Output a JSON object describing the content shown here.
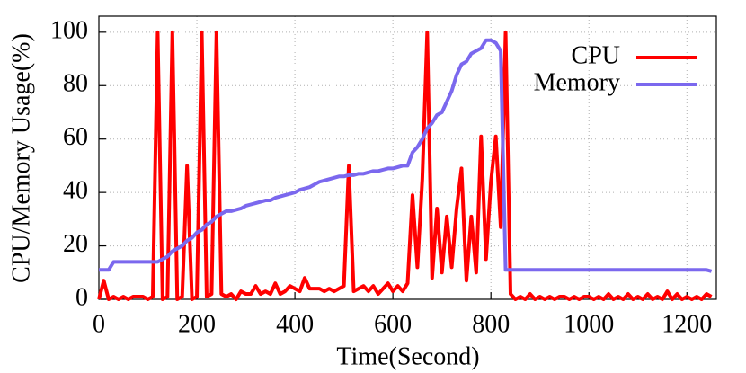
{
  "chart_data": {
    "type": "line",
    "xlabel": "Time(Second)",
    "ylabel": "CPU/Memory Usage(%)",
    "x": [
      0,
      10,
      20,
      30,
      40,
      50,
      60,
      70,
      80,
      90,
      100,
      110,
      120,
      130,
      140,
      150,
      160,
      170,
      180,
      190,
      200,
      210,
      220,
      230,
      240,
      250,
      260,
      270,
      280,
      290,
      300,
      310,
      320,
      330,
      340,
      350,
      360,
      370,
      380,
      390,
      400,
      410,
      420,
      430,
      440,
      450,
      460,
      470,
      480,
      490,
      500,
      510,
      520,
      530,
      540,
      550,
      560,
      570,
      580,
      590,
      600,
      610,
      620,
      630,
      640,
      650,
      660,
      670,
      680,
      690,
      700,
      710,
      720,
      730,
      740,
      750,
      760,
      770,
      780,
      790,
      800,
      810,
      820,
      830,
      840,
      850,
      860,
      870,
      880,
      890,
      900,
      910,
      920,
      930,
      940,
      950,
      960,
      970,
      980,
      990,
      1000,
      1010,
      1020,
      1030,
      1040,
      1050,
      1060,
      1070,
      1080,
      1090,
      1100,
      1110,
      1120,
      1130,
      1140,
      1150,
      1160,
      1170,
      1180,
      1190,
      1200,
      1210,
      1220,
      1230,
      1240,
      1250
    ],
    "series": [
      {
        "name": "CPU",
        "color": "#ff0000",
        "values": [
          0,
          7,
          0,
          1,
          0,
          1,
          0,
          1,
          1,
          1,
          0,
          1,
          100,
          0,
          1,
          100,
          0,
          1,
          50,
          0,
          1,
          100,
          1,
          2,
          100,
          2,
          1,
          2,
          0,
          3,
          2,
          2,
          5,
          2,
          3,
          2,
          6,
          2,
          3,
          5,
          4,
          3,
          8,
          4,
          4,
          4,
          3,
          4,
          3,
          4,
          5,
          50,
          3,
          4,
          5,
          3,
          5,
          2,
          4,
          6,
          3,
          5,
          3,
          6,
          39,
          12,
          45,
          100,
          8,
          34,
          10,
          31,
          12,
          34,
          49,
          7,
          31,
          10,
          61,
          15,
          44,
          61,
          27,
          100,
          2,
          0,
          1,
          0,
          2,
          0,
          1,
          0,
          1,
          0,
          1,
          1,
          0,
          1,
          0,
          1,
          1,
          0,
          1,
          0,
          2,
          0,
          1,
          0,
          2,
          0,
          1,
          0,
          2,
          0,
          1,
          0,
          3,
          0,
          2,
          0,
          1,
          0,
          1,
          0,
          2,
          1
        ]
      },
      {
        "name": "Memory",
        "color": "#7b68ee",
        "values": [
          11,
          11,
          11,
          14,
          14,
          14,
          14,
          14,
          14,
          14,
          14,
          14,
          14,
          15,
          16,
          18,
          19,
          20,
          22,
          23,
          25,
          26,
          28,
          29,
          31,
          32,
          33,
          33,
          33.5,
          34,
          35,
          35.5,
          36,
          36.5,
          37,
          37,
          38,
          38.5,
          39,
          39.5,
          40,
          41,
          41.5,
          42,
          43,
          44,
          44.5,
          45,
          45.5,
          46,
          46,
          46.5,
          46.5,
          47,
          47,
          47.5,
          48,
          48,
          48.5,
          49,
          49,
          49.5,
          50,
          50,
          55,
          57,
          60,
          64,
          66,
          69,
          70,
          74,
          78,
          84,
          88,
          89,
          92,
          93,
          94,
          97,
          97,
          96,
          93,
          11,
          11,
          11,
          11,
          11,
          11,
          11,
          11,
          11,
          11,
          11,
          11,
          11,
          11,
          11,
          11,
          11,
          11,
          11,
          11,
          11,
          11,
          11,
          11,
          11,
          11,
          11,
          11,
          11,
          11,
          11,
          11,
          11,
          11,
          11,
          11,
          11,
          11,
          11,
          11,
          11,
          11,
          10.5
        ]
      }
    ],
    "xlim": [
      0,
      1260
    ],
    "ylim": [
      0,
      106
    ],
    "xticks": [
      0,
      200,
      400,
      600,
      800,
      1000,
      1200
    ],
    "yticks": [
      0,
      20,
      40,
      60,
      80,
      100
    ],
    "grid": true,
    "legend": "upper-right"
  }
}
